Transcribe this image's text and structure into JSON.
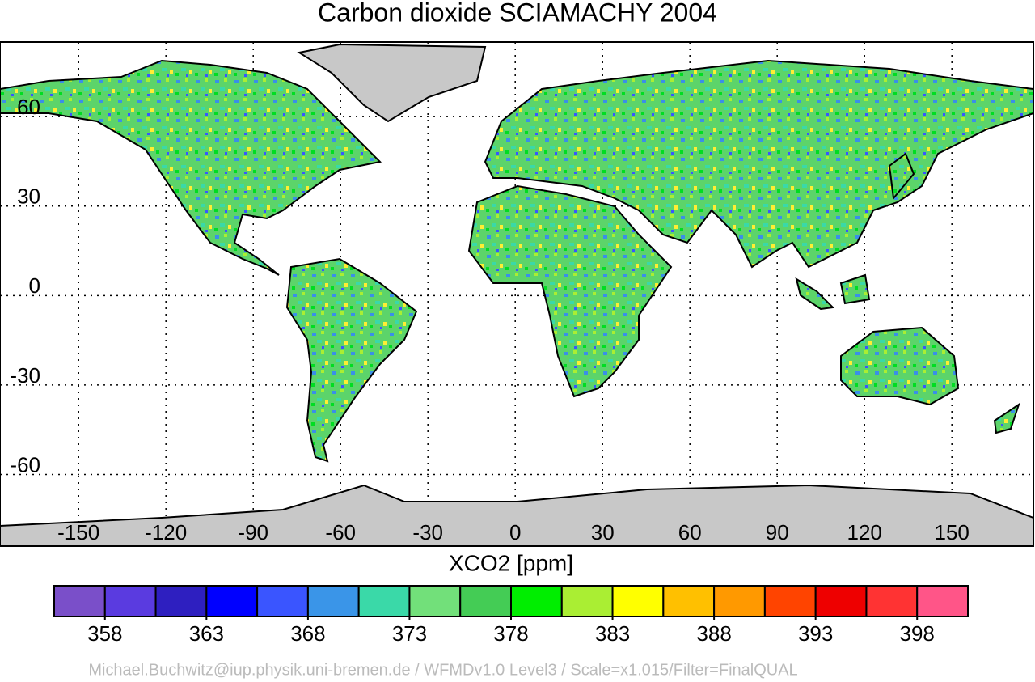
{
  "title": "Carbon dioxide SCIAMACHY 2004",
  "map": {
    "xlim": [
      -177,
      178
    ],
    "ylim": [
      -84,
      85
    ],
    "xticks": [
      -150,
      -120,
      -90,
      -60,
      -30,
      0,
      30,
      60,
      90,
      120,
      150
    ],
    "yticks": [
      60,
      30,
      0,
      -30,
      -60
    ],
    "grid": true
  },
  "colorbar": {
    "label": "XCO2 [ppm]",
    "range": [
      355.5,
      400.5
    ],
    "colors": [
      "#7a4fc9",
      "#5a3be0",
      "#2e1fc0",
      "#0000ff",
      "#3a55ff",
      "#3a95e8",
      "#3ad9a8",
      "#72e07a",
      "#44cc55",
      "#00ee00",
      "#aaee33",
      "#ffff00",
      "#ffc000",
      "#ff9900",
      "#ff4400",
      "#ee0000",
      "#ff3333",
      "#ff5588"
    ],
    "ticks": [
      358,
      363,
      368,
      373,
      378,
      383,
      388,
      393,
      398
    ]
  },
  "credit": "Michael.Buchwitz@iup.physik.uni-bremen.de / WFMDv1.0 Level3 / Scale=x1.015/Filter=FinalQUAL"
}
